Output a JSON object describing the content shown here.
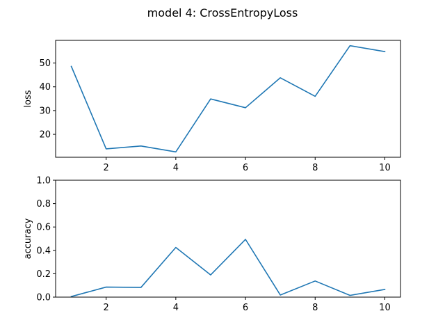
{
  "figure": {
    "title": "model 4: CrossEntropyLoss"
  },
  "chart_data": [
    {
      "type": "line",
      "title": "",
      "xlabel": "",
      "ylabel": "loss",
      "x": [
        1,
        2,
        3,
        4,
        5,
        6,
        7,
        8,
        9,
        10
      ],
      "series": [
        {
          "name": "",
          "color": "#1f77b4",
          "values": [
            48.6,
            13.9,
            15.1,
            12.6,
            34.9,
            31.2,
            43.8,
            36.0,
            57.3,
            54.8
          ]
        }
      ],
      "xlim": [
        0.55,
        10.45
      ],
      "ylim": [
        10.36,
        59.54
      ],
      "xticks": [
        2,
        4,
        6,
        8,
        10
      ],
      "yticks": [
        20,
        30,
        40,
        50
      ],
      "grid": false,
      "legend": "none"
    },
    {
      "type": "line",
      "title": "",
      "xlabel": "",
      "ylabel": "accuracy",
      "x": [
        1,
        2,
        3,
        4,
        5,
        6,
        7,
        8,
        9,
        10
      ],
      "series": [
        {
          "name": "",
          "color": "#1f77b4",
          "values": [
            0.005,
            0.086,
            0.083,
            0.425,
            0.19,
            0.494,
            0.018,
            0.138,
            0.015,
            0.066
          ]
        }
      ],
      "xlim": [
        0.55,
        10.45
      ],
      "ylim": [
        0.0,
        1.0
      ],
      "xticks": [
        2,
        4,
        6,
        8,
        10
      ],
      "yticks": [
        0.0,
        0.2,
        0.4,
        0.6,
        0.8,
        1.0
      ],
      "ytick_labels": [
        "0.0",
        "0.2",
        "0.4",
        "0.6",
        "0.8",
        "1.0"
      ],
      "grid": false,
      "legend": "none"
    }
  ]
}
